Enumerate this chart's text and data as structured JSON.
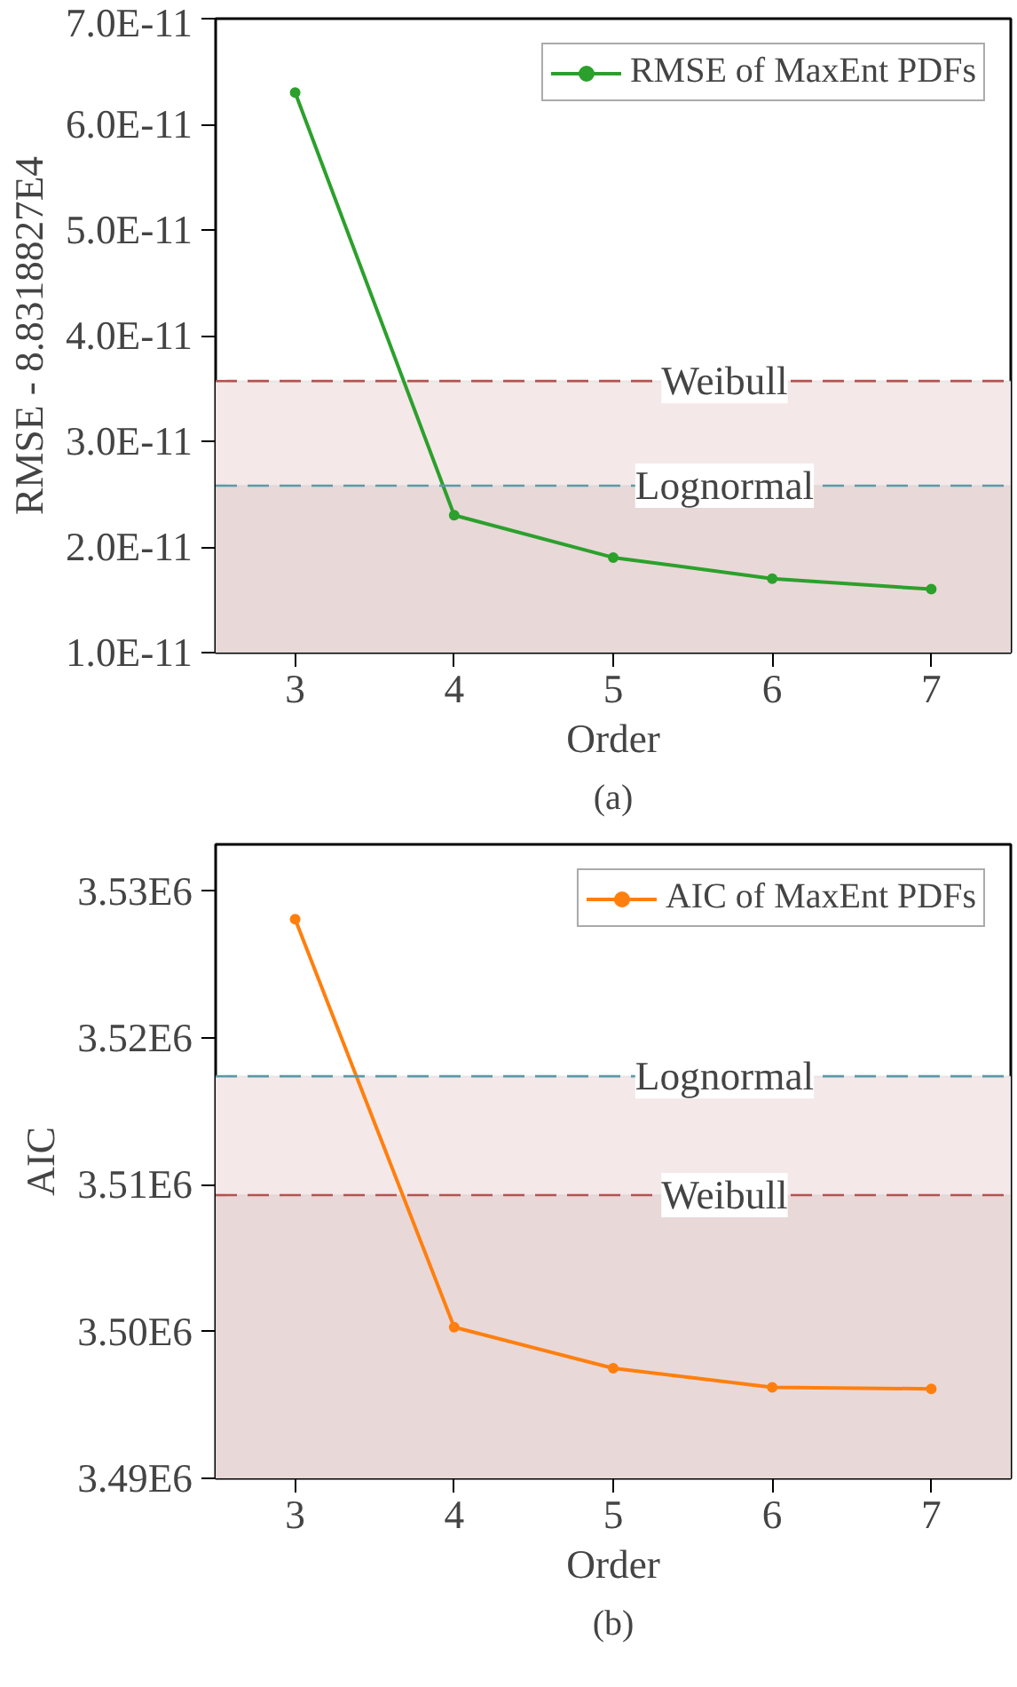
{
  "chart_data": [
    {
      "type": "line",
      "xlabel": "Order",
      "ylabel": "RMSE - 8.8318827E4",
      "x": [
        3,
        4,
        5,
        6,
        7
      ],
      "series": [
        {
          "name": "RMSE of MaxEnt PDFs",
          "color": "#2ca02c",
          "values": [
            6.3e-11,
            2.3e-11,
            1.9e-11,
            1.7e-11,
            1.6e-11
          ]
        }
      ],
      "xlim": [
        2.5,
        7.5
      ],
      "xticks": [
        3,
        4,
        5,
        6,
        7
      ],
      "ylim": [
        1e-11,
        7e-11
      ],
      "yticks": [
        {
          "value": 1e-11,
          "label": "1.0E-11"
        },
        {
          "value": 2e-11,
          "label": "2.0E-11"
        },
        {
          "value": 3e-11,
          "label": "3.0E-11"
        },
        {
          "value": 4e-11,
          "label": "4.0E-11"
        },
        {
          "value": 5e-11,
          "label": "5.0E-11"
        },
        {
          "value": 6e-11,
          "label": "6.0E-11"
        },
        {
          "value": 7e-11,
          "label": "7.0E-11"
        }
      ],
      "ref_lines": [
        {
          "axis": "y",
          "value": 3.57e-11,
          "label": "Weibull",
          "color": "#b5524f",
          "line_style": "dashed"
        },
        {
          "axis": "y",
          "value": 2.58e-11,
          "label": "Lognormal",
          "color": "#5b9aa8",
          "line_style": "dashed"
        }
      ],
      "bands": [
        {
          "axis": "y",
          "from": 1e-11,
          "to": 3.57e-11,
          "color": "#f4e8e8"
        },
        {
          "axis": "y",
          "from": 1e-11,
          "to": 2.58e-11,
          "color": "#e8d8d8"
        }
      ],
      "annotations": [
        "(a)"
      ],
      "legend": "top right",
      "marker": "circle",
      "line_style": "solid",
      "grid": false
    },
    {
      "type": "line",
      "xlabel": "Order",
      "ylabel": "AIC",
      "x": [
        3,
        4,
        5,
        6,
        7
      ],
      "series": [
        {
          "name": "AIC of MaxEnt PDFs",
          "color": "#ff7f0e",
          "values": [
            3528100,
            3500300,
            3497500,
            3496200,
            3496100
          ]
        }
      ],
      "xlim": [
        2.5,
        7.5
      ],
      "xticks": [
        3,
        4,
        5,
        6,
        7
      ],
      "ylim": [
        3490000,
        3533200
      ],
      "yticks": [
        {
          "value": 3490000,
          "label": "3.49E6"
        },
        {
          "value": 3500000,
          "label": "3.50E6"
        },
        {
          "value": 3510000,
          "label": "3.51E6"
        },
        {
          "value": 3520000,
          "label": "3.52E6"
        },
        {
          "value": 3530000,
          "label": "3.53E6"
        }
      ],
      "ref_lines": [
        {
          "axis": "y",
          "value": 3517400,
          "label": "Lognormal",
          "color": "#5b9aa8",
          "line_style": "dashed"
        },
        {
          "axis": "y",
          "value": 3509300,
          "label": "Weibull",
          "color": "#b5524f",
          "line_style": "dashed"
        }
      ],
      "bands": [
        {
          "axis": "y",
          "from": 3490000,
          "to": 3517400,
          "color": "#f4e8e8"
        },
        {
          "axis": "y",
          "from": 3490000,
          "to": 3509300,
          "color": "#e8d8d8"
        }
      ],
      "annotations": [
        "(b)"
      ],
      "legend": "top right",
      "marker": "circle",
      "line_style": "solid",
      "grid": false
    }
  ]
}
